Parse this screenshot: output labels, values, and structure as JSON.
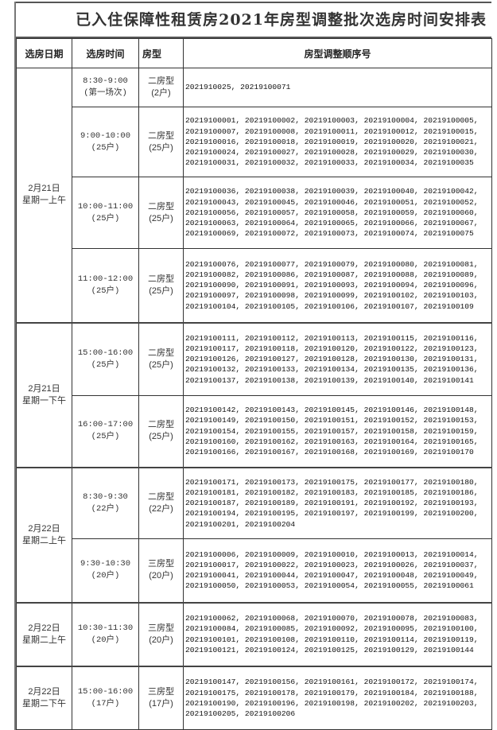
{
  "title": "已入住保障性租赁房2021年房型调整批次选房时间安排表",
  "headers": {
    "date": "选房日期",
    "time": "选房时间",
    "type": "房型",
    "numbers": "房型调整顺序号"
  },
  "groups": [
    {
      "date": [
        "2月21日",
        "星期一上午"
      ],
      "rows": [
        {
          "time": [
            "8:30-9:00",
            "(第一场次)"
          ],
          "type": [
            "二房型",
            "(2户)"
          ],
          "numbers": [
            "2021910025",
            "20219100071"
          ]
        },
        {
          "time": [
            "9:00-10:00",
            "(25户)"
          ],
          "type": [
            "二房型",
            "(25户)"
          ],
          "numbers": [
            "20219100001",
            "20219100002",
            "20219100003",
            "20219100004",
            "20219100005",
            "20219100007",
            "20219100008",
            "20219100011",
            "20219100012",
            "20219100015",
            "20219100016",
            "20219100018",
            "20219100019",
            "20219100020",
            "20219100021",
            "20219100024",
            "20219100027",
            "20219100028",
            "20219100029",
            "20219100030",
            "20219100031",
            "20219100032",
            "20219100033",
            "20219100034",
            "20219100035"
          ]
        },
        {
          "time": [
            "10:00-11:00",
            "(25户)"
          ],
          "type": [
            "二房型",
            "(25户)"
          ],
          "numbers": [
            "20219100036",
            "20219100038",
            "20219100039",
            "20219100040",
            "20219100042",
            "20219100043",
            "20219100045",
            "20219100046",
            "20219100051",
            "20219100052",
            "20219100056",
            "20219100057",
            "20219100058",
            "20219100059",
            "20219100060",
            "20219100063",
            "20219100064",
            "20219100065",
            "20219100066",
            "20219100067",
            "20219100069",
            "20219100072",
            "20219100073",
            "20219100074",
            "20219100075"
          ]
        },
        {
          "time": [
            "11:00-12:00",
            "(25户)"
          ],
          "type": [
            "二房型",
            "(25户)"
          ],
          "numbers": [
            "20219100076",
            "20219100077",
            "20219100079",
            "20219100080",
            "20219100081",
            "20219100082",
            "20219100086",
            "20219100087",
            "20219100088",
            "20219100089",
            "20219100090",
            "20219100091",
            "20219100093",
            "20219100094",
            "20219100096",
            "20219100097",
            "20219100098",
            "20219100099",
            "20219100102",
            "20219100103",
            "20219100104",
            "20219100105",
            "20219100106",
            "20219100107",
            "20219100109"
          ]
        }
      ]
    },
    {
      "date": [
        "2月21日",
        "星期一下午"
      ],
      "rows": [
        {
          "time": [
            "15:00-16:00",
            "(25户)"
          ],
          "type": [
            "二房型",
            "(25户)"
          ],
          "numbers": [
            "20219100111",
            "20219100112",
            "20219100113",
            "20219100115",
            "20219100116",
            "20219100117",
            "20219100118",
            "20219100120",
            "20219100122",
            "20219100123",
            "20219100126",
            "20219100127",
            "20219100128",
            "20219100130",
            "20219100131",
            "20219100132",
            "20219100133",
            "20219100134",
            "20219100135",
            "20219100136",
            "20219100137",
            "20219100138",
            "20219100139",
            "20219100140",
            "20219100141"
          ]
        },
        {
          "time": [
            "16:00-17:00",
            "(25户)"
          ],
          "type": [
            "二房型",
            "(25户)"
          ],
          "numbers": [
            "20219100142",
            "20219100143",
            "20219100145",
            "20219100146",
            "20219100148",
            "20219100149",
            "20219100150",
            "20219100151",
            "20219100152",
            "20219100153",
            "20219100154",
            "20219100155",
            "20219100157",
            "20219100158",
            "20219100159",
            "20219100160",
            "20219100162",
            "20219100163",
            "20219100164",
            "20219100165",
            "20219100166",
            "20219100167",
            "20219100168",
            "20219100169",
            "20219100170"
          ]
        }
      ]
    },
    {
      "date": [
        "2月22日",
        "星期二上午"
      ],
      "rows": [
        {
          "time": [
            "8:30-9:30",
            "(22户)"
          ],
          "type": [
            "二房型",
            "(22户)"
          ],
          "numbers": [
            "20219100171",
            "20219100173",
            "20219100175",
            "20219100177",
            "20219100180",
            "20219100181",
            "20219100182",
            "20219100183",
            "20219100185",
            "20219100186",
            "20219100187",
            "20219100189",
            "20219100191",
            "20219100192",
            "20219100193",
            "20219100194",
            "20219100195",
            "20219100197",
            "20219100199",
            "20219100200",
            "20219100201",
            "20219100204"
          ]
        },
        {
          "time": [
            "9:30-10:30",
            "(20户)"
          ],
          "type": [
            "三房型",
            "(20户)"
          ],
          "numbers": [
            "20219100006",
            "20219100009",
            "20219100010",
            "20219100013",
            "20219100014",
            "20219100017",
            "20219100022",
            "20219100023",
            "20219100026",
            "20219100037",
            "20219100041",
            "20219100044",
            "20219100047",
            "20219100048",
            "20219100049",
            "20219100050",
            "20219100053",
            "20219100054",
            "20219100055",
            "20219100061"
          ]
        }
      ]
    },
    {
      "date": [
        "2月22日",
        "星期二上午"
      ],
      "rows": [
        {
          "time": [
            "10:30-11:30",
            "(20户)"
          ],
          "type": [
            "三房型",
            "(20户)"
          ],
          "numbers": [
            "20219100062",
            "20219100068",
            "20219100070",
            "20219100078",
            "20219100083",
            "20219100084",
            "20219100085",
            "20219100092",
            "20219100095",
            "20219100100",
            "20219100101",
            "20219100108",
            "20219100110",
            "20219100114",
            "20219100119",
            "20219100121",
            "20219100124",
            "20219100125",
            "20219100129",
            "20219100144"
          ]
        }
      ]
    },
    {
      "date": [
        "2月22日",
        "星期二下午"
      ],
      "rows": [
        {
          "time": [
            "15:00-16:00",
            "(17户)"
          ],
          "type": [
            "三房型",
            "(17户)"
          ],
          "numbers": [
            "20219100147",
            "20219100156",
            "20219100161",
            "20219100172",
            "20219100174",
            "20219100175",
            "20219100178",
            "20219100179",
            "20219100184",
            "20219100188",
            "20219100190",
            "20219100196",
            "20219100198",
            "20219100202",
            "20219100203",
            "20219100205",
            "20219100206"
          ]
        }
      ]
    }
  ]
}
